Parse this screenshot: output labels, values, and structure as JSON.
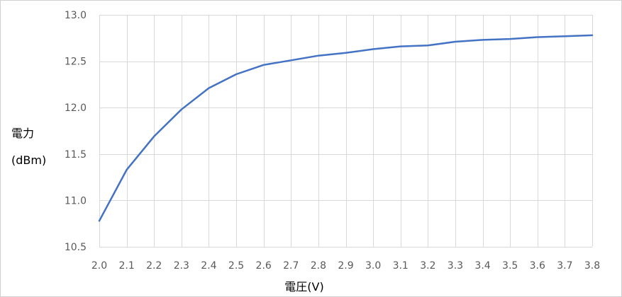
{
  "chart_data": {
    "type": "line",
    "xlabel": "電圧(V)",
    "ylabel_line1": "電力",
    "ylabel_line2": "(dBm)",
    "x": [
      2.0,
      2.1,
      2.2,
      2.3,
      2.4,
      2.5,
      2.6,
      2.7,
      2.8,
      2.9,
      3.0,
      3.1,
      3.2,
      3.3,
      3.4,
      3.5,
      3.6,
      3.7,
      3.8
    ],
    "x_tick_labels": [
      "2.0",
      "2.1",
      "2.2",
      "2.3",
      "2.4",
      "2.5",
      "2.6",
      "2.7",
      "2.8",
      "2.9",
      "3.0",
      "3.1",
      "3.2",
      "3.3",
      "3.4",
      "3.5",
      "3.6",
      "3.7",
      "3.8"
    ],
    "y_ticks": [
      10.5,
      11.0,
      11.5,
      12.0,
      12.5,
      13.0
    ],
    "y_tick_labels": [
      "10.5",
      "11.0",
      "11.5",
      "12.0",
      "12.5",
      "13.0"
    ],
    "ylim": [
      10.5,
      13.0
    ],
    "grid": true,
    "series": [
      {
        "color": "#4472c4",
        "values": [
          10.78,
          11.33,
          11.69,
          11.98,
          12.21,
          12.36,
          12.46,
          12.51,
          12.56,
          12.59,
          12.63,
          12.66,
          12.67,
          12.71,
          12.73,
          12.74,
          12.76,
          12.77,
          12.78
        ]
      }
    ]
  }
}
